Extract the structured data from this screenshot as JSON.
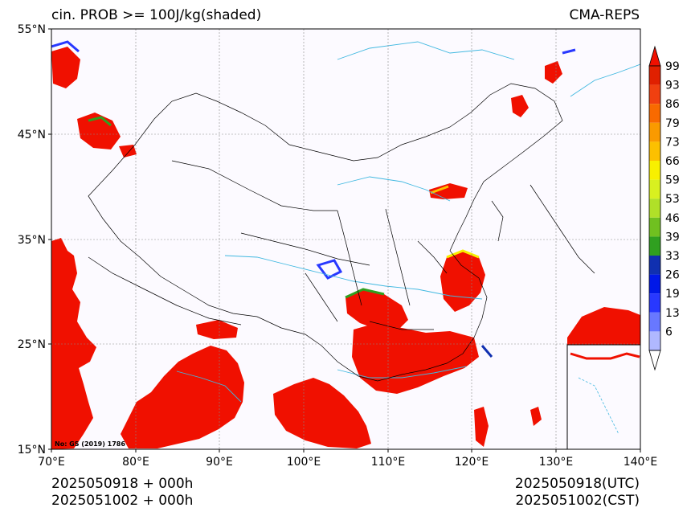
{
  "title": {
    "left": "cin. PROB >= 100J/kg(shaded)",
    "right": "CMA-REPS"
  },
  "axes": {
    "lat_labels": [
      "55°N",
      "45°N",
      "35°N",
      "25°N",
      "15°N"
    ],
    "lon_labels": [
      "70°E",
      "80°E",
      "90°E",
      "100°E",
      "110°E",
      "120°E",
      "130°E",
      "140°E"
    ]
  },
  "colorbar": {
    "levels": [
      "99",
      "93",
      "86",
      "79",
      "73",
      "66",
      "59",
      "53",
      "46",
      "39",
      "33",
      "26",
      "19",
      "13",
      "6"
    ],
    "colors": [
      "#e02000",
      "#f04010",
      "#f86a00",
      "#fa9a00",
      "#fcc000",
      "#f8f000",
      "#d8f020",
      "#b0e028",
      "#70c020",
      "#30a020",
      "#1030b0",
      "#0018e8",
      "#2838ff",
      "#6878ff",
      "#b0b8ff"
    ],
    "over_color": "#f01000",
    "under_color": "#ffffff"
  },
  "map": {
    "land_shade_color": "#fcfaff",
    "main_shade_color": "#f01000",
    "river_color": "#40b8e0",
    "border_color": "#000000",
    "gs_label": "No: GS (2019) 1786"
  },
  "footer": {
    "init_time": "2025050918  +  000h",
    "init_time_local": "2025051002  +  000h",
    "valid_utc": "2025050918(UTC)",
    "valid_cst": "2025051002(CST)"
  }
}
